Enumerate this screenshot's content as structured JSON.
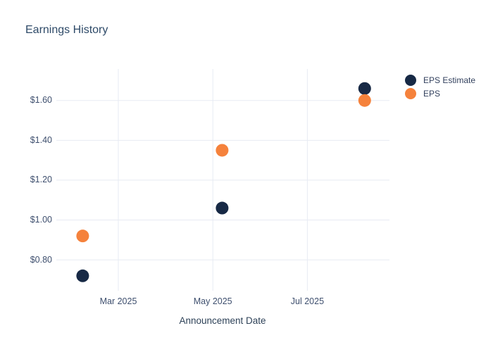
{
  "title": "Earnings History",
  "x_axis_title": "Announcement Date",
  "colors": {
    "eps_estimate": "#172945",
    "eps": "#f5823c",
    "title_text": "#2e4a68",
    "tick_text": "#3e4f6e",
    "axis_title_text": "#2e4258",
    "legend_text": "#33415e",
    "gridline": "#e7ebf3",
    "background": "#ffffff"
  },
  "legend": {
    "items": [
      {
        "label": "EPS Estimate",
        "color": "#172945"
      },
      {
        "label": "EPS",
        "color": "#f5823c"
      }
    ]
  },
  "chart_data": {
    "type": "scatter",
    "title": "Earnings History",
    "xlabel": "Announcement Date",
    "ylabel": "",
    "grid": true,
    "legend_position": "top-right",
    "marker_diameter_px": 18,
    "x_range": [
      "2025-01-20",
      "2025-08-23"
    ],
    "y_range": [
      0.645,
      1.758
    ],
    "x_ticks": [
      {
        "date": "2025-03-01",
        "label": "Mar 2025"
      },
      {
        "date": "2025-05-01",
        "label": "May 2025"
      },
      {
        "date": "2025-07-01",
        "label": "Jul 2025"
      }
    ],
    "y_ticks": [
      {
        "value": 0.8,
        "label": "$0.80"
      },
      {
        "value": 1.0,
        "label": "$1.00"
      },
      {
        "value": 1.2,
        "label": "$1.20"
      },
      {
        "value": 1.4,
        "label": "$1.40"
      },
      {
        "value": 1.6,
        "label": "$1.60"
      }
    ],
    "series": [
      {
        "name": "EPS Estimate",
        "color": "#172945",
        "points": [
          {
            "date": "2025-02-06",
            "value": 0.72
          },
          {
            "date": "2025-05-07",
            "value": 1.06
          },
          {
            "date": "2025-08-07",
            "value": 1.66
          }
        ]
      },
      {
        "name": "EPS",
        "color": "#f5823c",
        "points": [
          {
            "date": "2025-02-06",
            "value": 0.92
          },
          {
            "date": "2025-05-07",
            "value": 1.35
          },
          {
            "date": "2025-08-07",
            "value": 1.6
          }
        ]
      }
    ]
  }
}
